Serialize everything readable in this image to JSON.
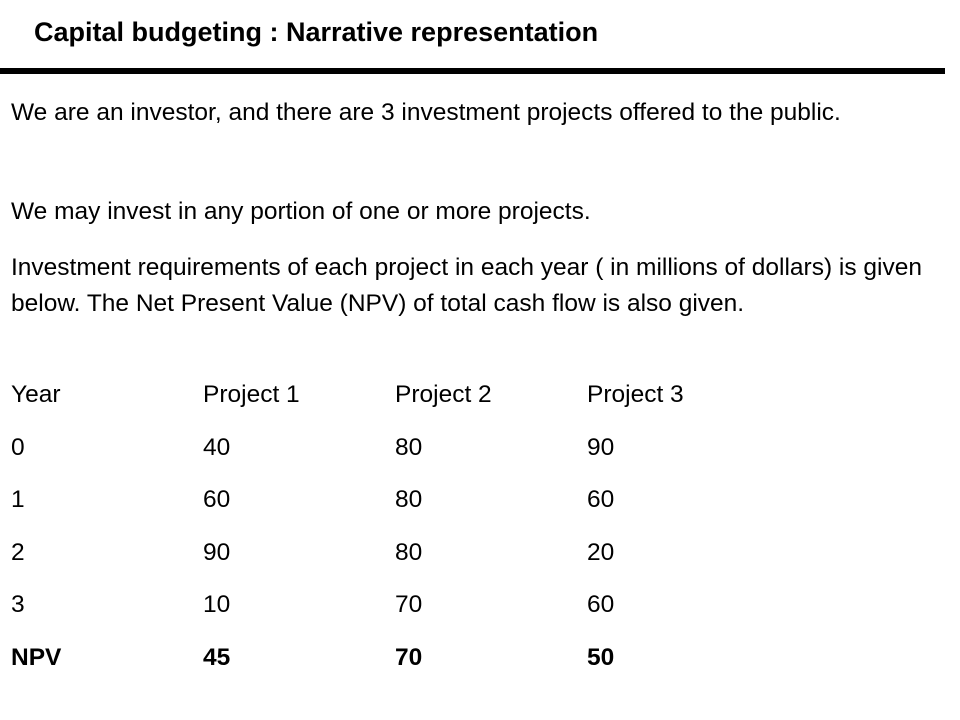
{
  "slide": {
    "title": "Capital budgeting : Narrative representation",
    "paragraphs": [
      "We are an investor, and there are 3 investment projects offered to the public.",
      "We may invest in any portion of one or more projects.",
      "Investment requirements of each project in each year ( in millions of dollars) is given below. The Net Present Value (NPV) of total cash flow is also given."
    ]
  },
  "table": {
    "headers": [
      "Year",
      "Project 1",
      "Project 2",
      "Project 3"
    ],
    "rows": [
      [
        "0",
        "40",
        "80",
        "90"
      ],
      [
        "1",
        "60",
        "80",
        "60"
      ],
      [
        "2",
        "90",
        "80",
        "20"
      ],
      [
        "3",
        "10",
        "70",
        "60"
      ]
    ],
    "npv_row": [
      "NPV",
      "45",
      "70",
      "50"
    ]
  }
}
